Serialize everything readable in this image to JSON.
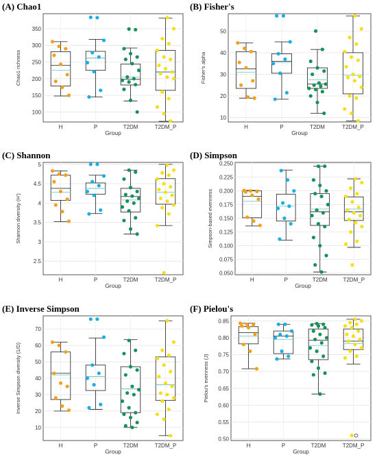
{
  "chart_data": [
    {
      "panel_title": "(A) Chao1",
      "type": "box",
      "xlabel": "Group",
      "ylabel": "Chao1 richness",
      "ylim": [
        70,
        395
      ],
      "yticks": [
        100,
        150,
        200,
        250,
        300,
        350
      ],
      "categories": [
        "H",
        "P",
        "T2DM",
        "T2DM_P"
      ],
      "colors": [
        "#f5a01a",
        "#1aaee5",
        "#17915a",
        "#f5e017"
      ],
      "boxes": [
        {
          "min": 148,
          "q1": 178,
          "median": 240,
          "mean": 225,
          "q3": 281,
          "max": 311
        },
        {
          "min": 145,
          "q1": 225,
          "median": 262,
          "mean": 262,
          "q3": 282,
          "max": 318
        },
        {
          "min": 133,
          "q1": 181,
          "median": 198,
          "mean": 205,
          "q3": 244,
          "max": 292
        },
        {
          "min": 72,
          "q1": 165,
          "median": 220,
          "mean": 219,
          "q3": 285,
          "max": 382
        }
      ],
      "points": [
        [
          311,
          297,
          290,
          270,
          243,
          212,
          192,
          174,
          150
        ],
        [
          384,
          383,
          315,
          278,
          265,
          248,
          221,
          165,
          145
        ],
        [
          349,
          347,
          290,
          275,
          265,
          258,
          245,
          225,
          205,
          200,
          195,
          190,
          182,
          168,
          135,
          100
        ],
        [
          383,
          350,
          320,
          305,
          285,
          265,
          258,
          240,
          230,
          220,
          215,
          205,
          200,
          160,
          140,
          115,
          95,
          73
        ]
      ]
    },
    {
      "panel_title": "(B) Fisher's",
      "type": "box",
      "xlabel": "Group",
      "ylabel": "Fisher's alpha",
      "ylim": [
        8,
        58
      ],
      "yticks": [
        10,
        20,
        30,
        40,
        50
      ],
      "categories": [
        "H",
        "P",
        "T2DM",
        "T2DM_P"
      ],
      "colors": [
        "#f5a01a",
        "#1aaee5",
        "#17915a",
        "#f5e017"
      ],
      "boxes": [
        {
          "min": 19,
          "q1": 23.5,
          "median": 32.5,
          "mean": 31,
          "q3": 40.5,
          "max": 44.5
        },
        {
          "min": 18.5,
          "q1": 30.5,
          "median": 36,
          "mean": 35.5,
          "q3": 39.5,
          "max": 45
        },
        {
          "min": 12,
          "q1": 23.5,
          "median": 25.5,
          "mean": 27.5,
          "q3": 33,
          "max": 41.5
        },
        {
          "min": 8.5,
          "q1": 21,
          "median": 29.5,
          "mean": 29.5,
          "q3": 40,
          "max": 57
        }
      ],
      "points": [
        [
          44.5,
          42,
          40.5,
          35.5,
          33,
          27,
          25,
          19.5,
          19
        ],
        [
          57,
          57,
          45,
          39.5,
          37,
          35,
          30.5,
          21.5,
          18.5
        ],
        [
          50,
          41.5,
          36,
          33,
          31.5,
          30,
          26,
          25.5,
          25,
          24.5,
          23.5,
          23,
          22,
          20,
          17,
          12
        ],
        [
          57,
          51,
          47,
          44,
          40.5,
          38,
          36.5,
          33.5,
          30,
          29,
          28.5,
          27,
          24,
          20,
          19,
          14,
          12,
          8.5
        ]
      ]
    },
    {
      "panel_title": "(C) Shannon",
      "type": "box",
      "xlabel": "Group",
      "ylabel": "Shannon diversity (H')",
      "ylim": [
        2.15,
        5.05
      ],
      "yticks": [
        2.5,
        3.0,
        3.5,
        4.0,
        4.5,
        5.0
      ],
      "categories": [
        "H",
        "P",
        "T2DM",
        "T2DM_P"
      ],
      "colors": [
        "#f5a01a",
        "#1aaee5",
        "#17915a",
        "#f5e017"
      ],
      "boxes": [
        {
          "min": 3.52,
          "q1": 4.07,
          "median": 4.38,
          "mean": 4.28,
          "q3": 4.72,
          "max": 4.83
        },
        {
          "min": 3.73,
          "q1": 4.23,
          "median": 4.38,
          "mean": 4.38,
          "q3": 4.52,
          "max": 4.72
        },
        {
          "min": 3.2,
          "q1": 3.77,
          "median": 4.17,
          "mean": 4.08,
          "q3": 4.38,
          "max": 4.85
        },
        {
          "min": 3.42,
          "q1": 3.97,
          "median": 4.28,
          "mean": 4.28,
          "q3": 4.63,
          "max": 5.0
        }
      ],
      "points": [
        [
          4.83,
          4.75,
          4.72,
          4.55,
          4.3,
          4.1,
          3.95,
          3.78,
          3.53
        ],
        [
          5.0,
          5.0,
          4.7,
          4.55,
          4.45,
          4.3,
          4.2,
          3.82,
          3.72
        ],
        [
          4.85,
          4.8,
          4.62,
          4.4,
          4.3,
          4.22,
          4.18,
          4.12,
          4.05,
          4.0,
          3.9,
          3.8,
          3.62,
          3.55,
          3.33,
          3.2
        ],
        [
          4.98,
          4.85,
          4.78,
          4.72,
          4.62,
          4.5,
          4.42,
          4.35,
          4.28,
          4.2,
          4.12,
          4.05,
          3.95,
          3.88,
          3.72,
          3.42,
          2.2
        ]
      ]
    },
    {
      "panel_title": "(D) Simpson",
      "type": "box",
      "xlabel": "Group",
      "ylabel": "Simpson-based evenness",
      "ylim": [
        0.047,
        0.252
      ],
      "yticks": [
        0.05,
        0.075,
        0.1,
        0.125,
        0.15,
        0.175,
        0.2,
        0.225,
        0.25
      ],
      "ytick_labels": [
        "0.050",
        "0.075",
        "0.100",
        "0.125",
        "0.150",
        "0.175",
        "0.200",
        "0.225",
        "0.250"
      ],
      "categories": [
        "H",
        "P",
        "T2DM",
        "T2DM_P"
      ],
      "colors": [
        "#f5a01a",
        "#1aaee5",
        "#17915a",
        "#f5e017"
      ],
      "boxes": [
        {
          "min": 0.136,
          "q1": 0.151,
          "median": 0.19,
          "mean": 0.181,
          "q3": 0.2,
          "max": 0.201
        },
        {
          "min": 0.11,
          "q1": 0.145,
          "median": 0.172,
          "mean": 0.172,
          "q3": 0.194,
          "max": 0.238
        },
        {
          "min": 0.052,
          "q1": 0.137,
          "median": 0.162,
          "mean": 0.167,
          "q3": 0.195,
          "max": 0.245
        },
        {
          "min": 0.097,
          "q1": 0.146,
          "median": 0.162,
          "mean": 0.167,
          "q3": 0.189,
          "max": 0.222
        }
      ],
      "points": [
        [
          0.201,
          0.2,
          0.199,
          0.198,
          0.192,
          0.185,
          0.152,
          0.145,
          0.137
        ],
        [
          0.237,
          0.22,
          0.2,
          0.178,
          0.172,
          0.168,
          0.15,
          0.14,
          0.112
        ],
        [
          0.245,
          0.245,
          0.22,
          0.21,
          0.2,
          0.195,
          0.19,
          0.175,
          0.165,
          0.16,
          0.155,
          0.14,
          0.135,
          0.115,
          0.1,
          0.082,
          0.065,
          0.052
        ],
        [
          0.222,
          0.215,
          0.205,
          0.195,
          0.19,
          0.18,
          0.17,
          0.165,
          0.16,
          0.155,
          0.148,
          0.142,
          0.135,
          0.125,
          0.108,
          0.103,
          0.065
        ]
      ]
    },
    {
      "panel_title": "(E) Inverse Simpson",
      "type": "box",
      "xlabel": "Group",
      "ylabel": "Inverse Simpson diversity (1/D)",
      "ylim": [
        2,
        78
      ],
      "yticks": [
        10,
        20,
        30,
        40,
        50,
        60,
        70
      ],
      "categories": [
        "H",
        "P",
        "T2DM",
        "T2DM_P"
      ],
      "colors": [
        "#f5a01a",
        "#1aaee5",
        "#17915a",
        "#f5e017"
      ],
      "boxes": [
        {
          "min": 20,
          "q1": 27,
          "median": 43,
          "mean": 42,
          "q3": 56,
          "max": 62
        },
        {
          "min": 21,
          "q1": 32.5,
          "median": 41,
          "mean": 41,
          "q3": 48,
          "max": 64.5
        },
        {
          "min": 10,
          "q1": 19,
          "median": 33.5,
          "mean": 33.5,
          "q3": 47,
          "max": 63.5
        },
        {
          "min": 5,
          "q1": 26.5,
          "median": 36,
          "mean": 36,
          "q3": 53,
          "max": 75
        }
      ],
      "points": [
        [
          62,
          60,
          56,
          43,
          37,
          35,
          28,
          23,
          20.5
        ],
        [
          76,
          76,
          65,
          48,
          43,
          40,
          36,
          24,
          22
        ],
        [
          63,
          57,
          55,
          47,
          45,
          42,
          35,
          33,
          31,
          30,
          26,
          22,
          19,
          18,
          16,
          13,
          11,
          10
        ],
        [
          75,
          62,
          57,
          54,
          52,
          48,
          44,
          41,
          37,
          35,
          31,
          30,
          28,
          26,
          21,
          18,
          15,
          5
        ]
      ]
    },
    {
      "panel_title": "(F) Pielou's",
      "type": "box",
      "xlabel": "Group",
      "ylabel": "Pielou's evenness (J)",
      "ylim": [
        0.495,
        0.865
      ],
      "yticks": [
        0.5,
        0.55,
        0.6,
        0.65,
        0.7,
        0.75,
        0.8,
        0.85
      ],
      "ytick_labels": [
        "0.50",
        "0.55",
        "0.60",
        "0.65",
        "0.70",
        "0.75",
        "0.80",
        "0.85"
      ],
      "categories": [
        "H",
        "P",
        "T2DM",
        "T2DM_P"
      ],
      "colors": [
        "#f5a01a",
        "#1aaee5",
        "#17915a",
        "#f5e017"
      ],
      "boxes": [
        {
          "min": 0.708,
          "q1": 0.782,
          "median": 0.815,
          "mean": 0.805,
          "q3": 0.833,
          "max": 0.843
        },
        {
          "min": 0.737,
          "q1": 0.753,
          "median": 0.805,
          "mean": 0.795,
          "q3": 0.82,
          "max": 0.84
        },
        {
          "min": 0.633,
          "q1": 0.735,
          "median": 0.793,
          "mean": 0.777,
          "q3": 0.826,
          "max": 0.842
        },
        {
          "min": 0.722,
          "q1": 0.765,
          "median": 0.79,
          "mean": 0.783,
          "q3": 0.826,
          "max": 0.855
        }
      ],
      "points": [
        [
          0.843,
          0.84,
          0.838,
          0.835,
          0.83,
          0.81,
          0.78,
          0.76,
          0.708
        ],
        [
          0.84,
          0.84,
          0.82,
          0.81,
          0.805,
          0.8,
          0.76,
          0.745,
          0.737
        ],
        [
          0.842,
          0.84,
          0.838,
          0.835,
          0.83,
          0.82,
          0.81,
          0.8,
          0.795,
          0.785,
          0.77,
          0.76,
          0.745,
          0.73,
          0.71,
          0.695,
          0.69,
          0.633
        ],
        [
          0.855,
          0.85,
          0.845,
          0.84,
          0.835,
          0.83,
          0.82,
          0.81,
          0.805,
          0.795,
          0.79,
          0.78,
          0.77,
          0.76,
          0.745,
          0.74,
          0.51
        ]
      ],
      "outliers": [
        [],
        [],
        [],
        [
          0.51
        ]
      ]
    }
  ]
}
